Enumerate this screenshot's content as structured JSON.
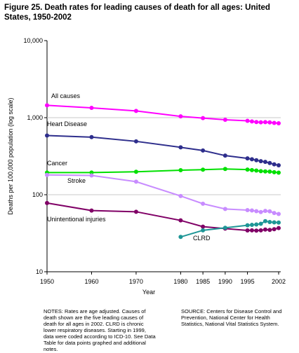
{
  "chart_data": {
    "type": "line",
    "title": "Figure 25. Death rates for leading causes of death for all ages: United States, 1950-2002",
    "xlabel": "Year",
    "ylabel": "Deaths per 100,000 population (log scale)",
    "ylog": true,
    "grid": true,
    "x": [
      1950,
      1960,
      1970,
      1980,
      1985,
      1990,
      1995,
      1996,
      1997,
      1998,
      1999,
      2000,
      2001,
      2002
    ],
    "xlim": [
      1950,
      2002
    ],
    "xticks": [
      1950,
      1960,
      1970,
      1980,
      1985,
      1990,
      1995,
      2002
    ],
    "ylim": [
      10,
      10000
    ],
    "yticks": [
      10,
      100,
      {
        "value": 1000,
        "label": "1,000"
      },
      {
        "value": 10000,
        "label": "10,000"
      }
    ],
    "series": [
      {
        "name": "All causes",
        "color": "#ff00ff",
        "values": [
          1446,
          1339.2,
          1222.6,
          1039.1,
          988.1,
          938.7,
          909.8,
          894.1,
          878.1,
          870.6,
          875.6,
          869.0,
          854.5,
          845.3
        ]
      },
      {
        "name": "Heart Disease",
        "color": "#2e2e8c",
        "values": [
          586.8,
          559.0,
          492.7,
          412.1,
          375.0,
          321.8,
          296.3,
          288.3,
          280.4,
          272.4,
          266.5,
          257.6,
          247.8,
          240.8
        ]
      },
      {
        "name": "Cancer",
        "color": "#00e000",
        "values": [
          193.9,
          193.9,
          198.6,
          207.9,
          211.3,
          216.0,
          211.7,
          208.7,
          205.7,
          202.4,
          200.8,
          199.6,
          196.0,
          193.5
        ]
      },
      {
        "name": "Stroke",
        "color": "#c88cff",
        "values": [
          180.7,
          177.9,
          147.7,
          96.2,
          76.4,
          65.3,
          63.1,
          62.5,
          61.1,
          59.6,
          61.6,
          60.9,
          57.9,
          56.2
        ]
      },
      {
        "name": "Unintentional injuries",
        "color": "#800066",
        "values": [
          78.0,
          62.3,
          60.1,
          46.4,
          38.5,
          36.3,
          34.4,
          34.5,
          34.2,
          34.5,
          35.3,
          34.9,
          35.7,
          36.9
        ]
      },
      {
        "name": "CLRD",
        "color": "#1e9696",
        "values": [
          null,
          null,
          null,
          28.3,
          34.5,
          37.2,
          40.1,
          40.6,
          41.1,
          42.0,
          45.4,
          44.2,
          43.7,
          43.5
        ]
      }
    ],
    "notes": "NOTES: Rates are age adjusted. Causes of death shown are the five leading causes of death for all ages in 2002. CLRD is chronic lower respiratory diseases. Starting in 1999, data were coded according to ICD-10. See Data Table for data points graphed and additional notes.",
    "source": "SOURCE: Centers for Disease Control and Prevention, National Center for Health Statistics, National Vital Statistics System."
  }
}
